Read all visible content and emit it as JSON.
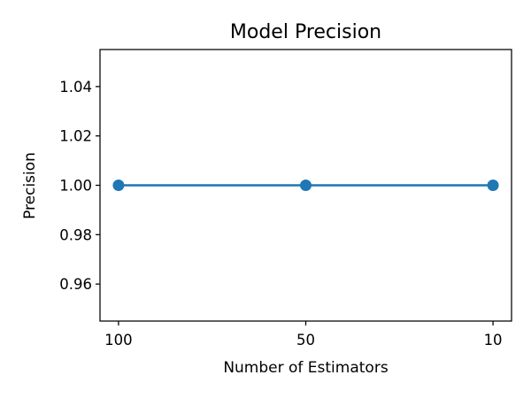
{
  "chart_data": {
    "type": "line",
    "title": "Model Precision",
    "xlabel": "Number of Estimators",
    "ylabel": "Precision",
    "categories": [
      "100",
      "50",
      "10"
    ],
    "series": [
      {
        "values": [
          1.0,
          1.0,
          1.0
        ],
        "color": "#1f77b4",
        "marker": "circle"
      }
    ],
    "yticks": [
      "0.96",
      "0.98",
      "1.00",
      "1.02",
      "1.04"
    ],
    "ylim": [
      0.945,
      1.055
    ],
    "grid": false,
    "legend": "none"
  }
}
